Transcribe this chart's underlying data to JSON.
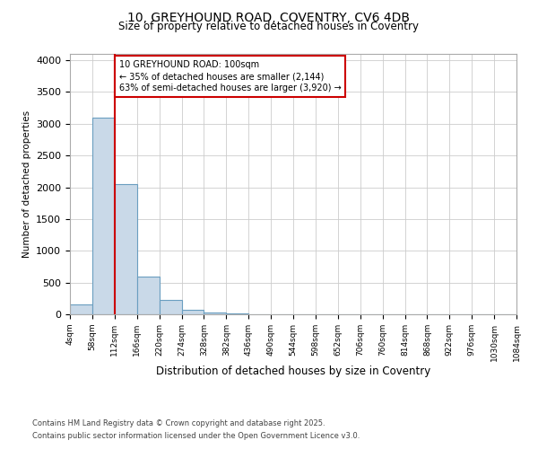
{
  "title1": "10, GREYHOUND ROAD, COVENTRY, CV6 4DB",
  "title2": "Size of property relative to detached houses in Coventry",
  "xlabel": "Distribution of detached houses by size in Coventry",
  "ylabel": "Number of detached properties",
  "bin_labels": [
    "4sqm",
    "58sqm",
    "112sqm",
    "166sqm",
    "220sqm",
    "274sqm",
    "328sqm",
    "382sqm",
    "436sqm",
    "490sqm",
    "544sqm",
    "598sqm",
    "652sqm",
    "706sqm",
    "760sqm",
    "814sqm",
    "868sqm",
    "922sqm",
    "976sqm",
    "1030sqm",
    "1084sqm"
  ],
  "bar_values": [
    150,
    3100,
    2050,
    590,
    220,
    70,
    35,
    10,
    5,
    0,
    0,
    0,
    0,
    0,
    0,
    0,
    0,
    0,
    0,
    0
  ],
  "bar_color": "#c9d9e8",
  "bar_edge_color": "#6a9ec0",
  "red_line_x": 2.0,
  "ylim": [
    0,
    4100
  ],
  "yticks": [
    0,
    500,
    1000,
    1500,
    2000,
    2500,
    3000,
    3500,
    4000
  ],
  "annotation_text": "10 GREYHOUND ROAD: 100sqm\n← 35% of detached houses are smaller (2,144)\n63% of semi-detached houses are larger (3,920) →",
  "annotation_box_color": "#ffffff",
  "annotation_box_edge": "#cc0000",
  "footnote1": "Contains HM Land Registry data © Crown copyright and database right 2025.",
  "footnote2": "Contains public sector information licensed under the Open Government Licence v3.0.",
  "bg_color": "#ffffff",
  "grid_color": "#cccccc",
  "fig_width": 6.0,
  "fig_height": 5.0,
  "dpi": 100
}
